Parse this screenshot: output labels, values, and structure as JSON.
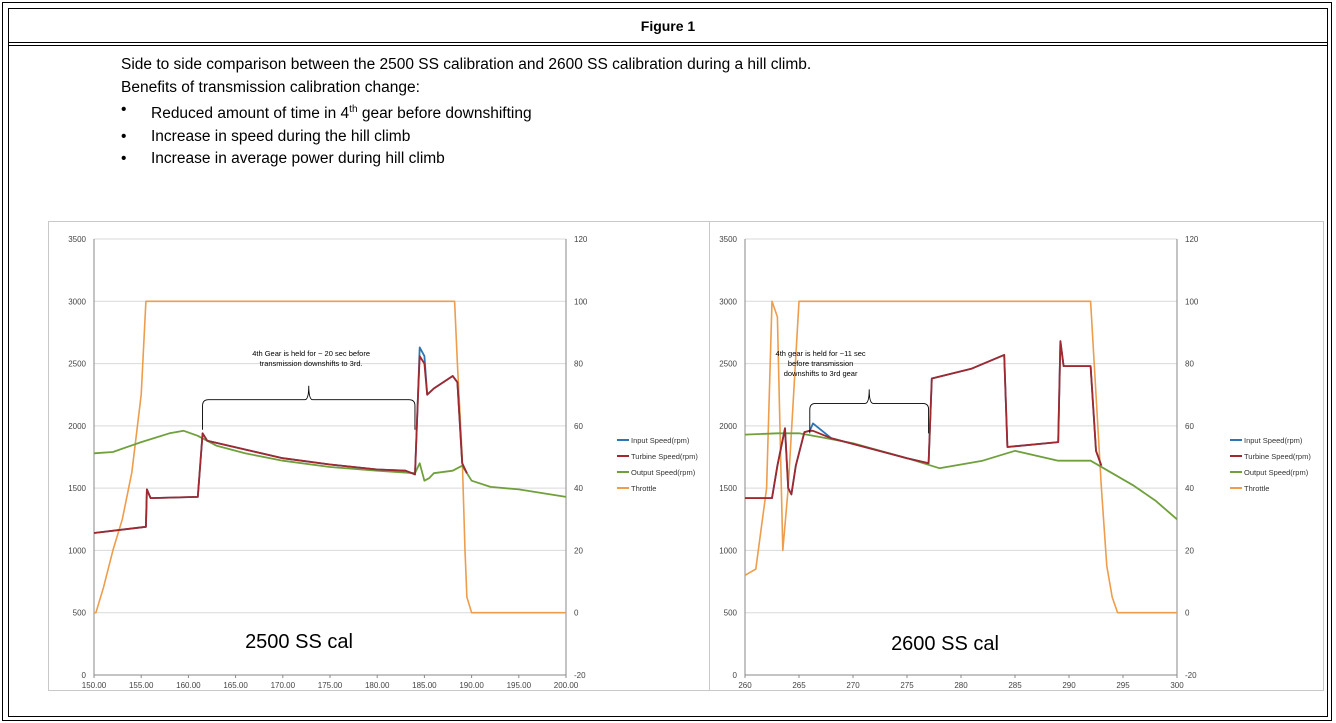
{
  "figure_title": "Figure 1",
  "intro_line1": "Side to side comparison between the 2500 SS calibration and 2600 SS calibration during a hill climb.",
  "intro_line2": "Benefits of transmission calibration change:",
  "bullets": [
    {
      "pre": "Reduced amount of time in 4",
      "sup": "th",
      "post": " gear before downshifting"
    },
    {
      "pre": "Increase in speed during the hill climb",
      "sup": "",
      "post": ""
    },
    {
      "pre": "Increase in average power during hill climb",
      "sup": "",
      "post": ""
    }
  ],
  "bullet_char": "•",
  "colors": {
    "input": "#2e75b6",
    "turbine": "#a0282e",
    "output": "#70a03c",
    "throttle": "#ed9d4c",
    "grid": "#d9d9d9",
    "bracket": "#000000"
  },
  "chart_data": [
    {
      "type": "line",
      "label": "2500 SS cal",
      "xlim": [
        150,
        200
      ],
      "x_ticks": [
        "150.00",
        "155.00",
        "160.00",
        "165.00",
        "170.00",
        "175.00",
        "180.00",
        "185.00",
        "190.00",
        "195.00",
        "200.00"
      ],
      "ylim_left": [
        0,
        3500
      ],
      "y_ticks_left": [
        "0",
        "500",
        "1000",
        "1500",
        "2000",
        "2500",
        "3000",
        "3500"
      ],
      "ylim_right": [
        -20,
        120
      ],
      "y_ticks_right": [
        "-20",
        "0",
        "20",
        "40",
        "60",
        "80",
        "100",
        "120"
      ],
      "grid": true,
      "legend_position": "right",
      "legend": [
        "Input Speed(rpm)",
        "Turbine Speed(rpm)",
        "Output Speed(rpm)",
        "Throttle"
      ],
      "annotation": {
        "lines": [
          "4th Gear is held for ~ 20 sec before",
          "transmission downshifts to 3rd."
        ],
        "bracket_x": [
          161.5,
          184
        ],
        "bracket_y": 2210,
        "text_x": 173,
        "text_y": 2560
      },
      "series": [
        {
          "name": "Input Speed(rpm)",
          "axis": "left",
          "x": [
            150,
            155.5,
            155.6,
            156,
            161,
            161.5,
            162,
            170,
            175,
            180,
            183,
            184,
            184.3,
            184.5,
            185,
            185.3,
            186,
            188,
            188.5,
            189,
            189.5
          ],
          "y": [
            1140,
            1190,
            1490,
            1420,
            1430,
            1940,
            1880,
            1740,
            1690,
            1650,
            1640,
            1610,
            2200,
            2630,
            2560,
            2250,
            2300,
            2400,
            2350,
            1700,
            1620
          ]
        },
        {
          "name": "Turbine Speed(rpm)",
          "axis": "left",
          "x": [
            150,
            155.5,
            155.6,
            156,
            161,
            161.5,
            162,
            170,
            175,
            180,
            183,
            184,
            184.3,
            184.5,
            185,
            185.3,
            186,
            188,
            188.5,
            189,
            189.5
          ],
          "y": [
            1140,
            1190,
            1490,
            1420,
            1430,
            1940,
            1880,
            1740,
            1690,
            1650,
            1640,
            1610,
            2200,
            2560,
            2500,
            2250,
            2300,
            2400,
            2350,
            1700,
            1620
          ]
        },
        {
          "name": "Output Speed(rpm)",
          "axis": "left",
          "x": [
            150,
            152,
            155,
            158,
            159.5,
            161,
            163,
            166,
            170,
            175,
            180,
            184,
            184.5,
            185,
            185.5,
            186,
            188,
            189,
            190,
            192,
            195,
            200
          ],
          "y": [
            1780,
            1790,
            1870,
            1940,
            1960,
            1920,
            1840,
            1780,
            1720,
            1670,
            1640,
            1620,
            1700,
            1560,
            1580,
            1620,
            1640,
            1680,
            1560,
            1510,
            1490,
            1430
          ]
        },
        {
          "name": "Throttle",
          "axis": "right",
          "x": [
            150,
            150.2,
            151,
            152,
            153,
            154,
            155,
            155.5,
            156,
            188.2,
            188.5,
            189,
            189.3,
            189.5,
            190,
            200
          ],
          "y": [
            0,
            0,
            8,
            20,
            30,
            45,
            70,
            100,
            100,
            100,
            80,
            50,
            20,
            5,
            0,
            0
          ]
        }
      ]
    },
    {
      "type": "line",
      "label": "2600 SS cal",
      "xlim": [
        260,
        300
      ],
      "x_ticks": [
        "260",
        "265",
        "270",
        "275",
        "280",
        "285",
        "290",
        "295",
        "300"
      ],
      "ylim_left": [
        0,
        3500
      ],
      "y_ticks_left": [
        "0",
        "500",
        "1000",
        "1500",
        "2000",
        "2500",
        "3000",
        "3500"
      ],
      "ylim_right": [
        -20,
        120
      ],
      "y_ticks_right": [
        "-20",
        "0",
        "20",
        "40",
        "60",
        "80",
        "100",
        "120"
      ],
      "grid": true,
      "legend_position": "right",
      "legend": [
        "Input Speed(rpm)",
        "Turbine Speed(rpm)",
        "Output Speed(rpm)",
        "Throttle"
      ],
      "annotation": {
        "lines": [
          "4th gear is held for ~11 sec",
          "before transmission",
          "downshifts to 3rd gear"
        ],
        "bracket_x": [
          266,
          277
        ],
        "bracket_y": 2180,
        "text_x": 267,
        "text_y": 2560
      },
      "series": [
        {
          "name": "Input Speed(rpm)",
          "axis": "left",
          "x": [
            260,
            262.5,
            263,
            263.7,
            264,
            264.3,
            264.7,
            265.5,
            266,
            266.3,
            268,
            275,
            277,
            277.3,
            281,
            284,
            284.3,
            289,
            289.2,
            289.5,
            292,
            292.5,
            293
          ],
          "y": [
            1420,
            1420,
            1680,
            1980,
            1500,
            1450,
            1680,
            1950,
            1960,
            2020,
            1900,
            1740,
            1700,
            2380,
            2460,
            2570,
            1830,
            1870,
            2680,
            2480,
            2480,
            1800,
            1680
          ]
        },
        {
          "name": "Turbine Speed(rpm)",
          "axis": "left",
          "x": [
            260,
            262.5,
            263,
            263.7,
            264,
            264.3,
            264.7,
            265.5,
            266,
            266.3,
            268,
            275,
            277,
            277.3,
            281,
            284,
            284.3,
            289,
            289.2,
            289.5,
            292,
            292.5,
            293
          ],
          "y": [
            1420,
            1420,
            1680,
            1980,
            1500,
            1450,
            1680,
            1950,
            1960,
            1960,
            1900,
            1740,
            1700,
            2380,
            2460,
            2570,
            1830,
            1870,
            2680,
            2480,
            2480,
            1800,
            1680
          ]
        },
        {
          "name": "Output Speed(rpm)",
          "axis": "left",
          "x": [
            260,
            263,
            265,
            267,
            270,
            275,
            278,
            282,
            285,
            289,
            292,
            294,
            296,
            298,
            300
          ],
          "y": [
            1930,
            1940,
            1940,
            1910,
            1860,
            1740,
            1660,
            1720,
            1800,
            1720,
            1720,
            1620,
            1520,
            1400,
            1250
          ]
        },
        {
          "name": "Throttle",
          "axis": "right",
          "x": [
            260,
            261,
            262,
            262.5,
            263,
            263.5,
            264,
            264.5,
            265,
            292,
            292.5,
            293,
            293.5,
            294,
            294.5,
            300
          ],
          "y": [
            12,
            14,
            40,
            100,
            95,
            20,
            40,
            70,
            100,
            100,
            70,
            40,
            15,
            5,
            0,
            0
          ]
        }
      ]
    }
  ]
}
